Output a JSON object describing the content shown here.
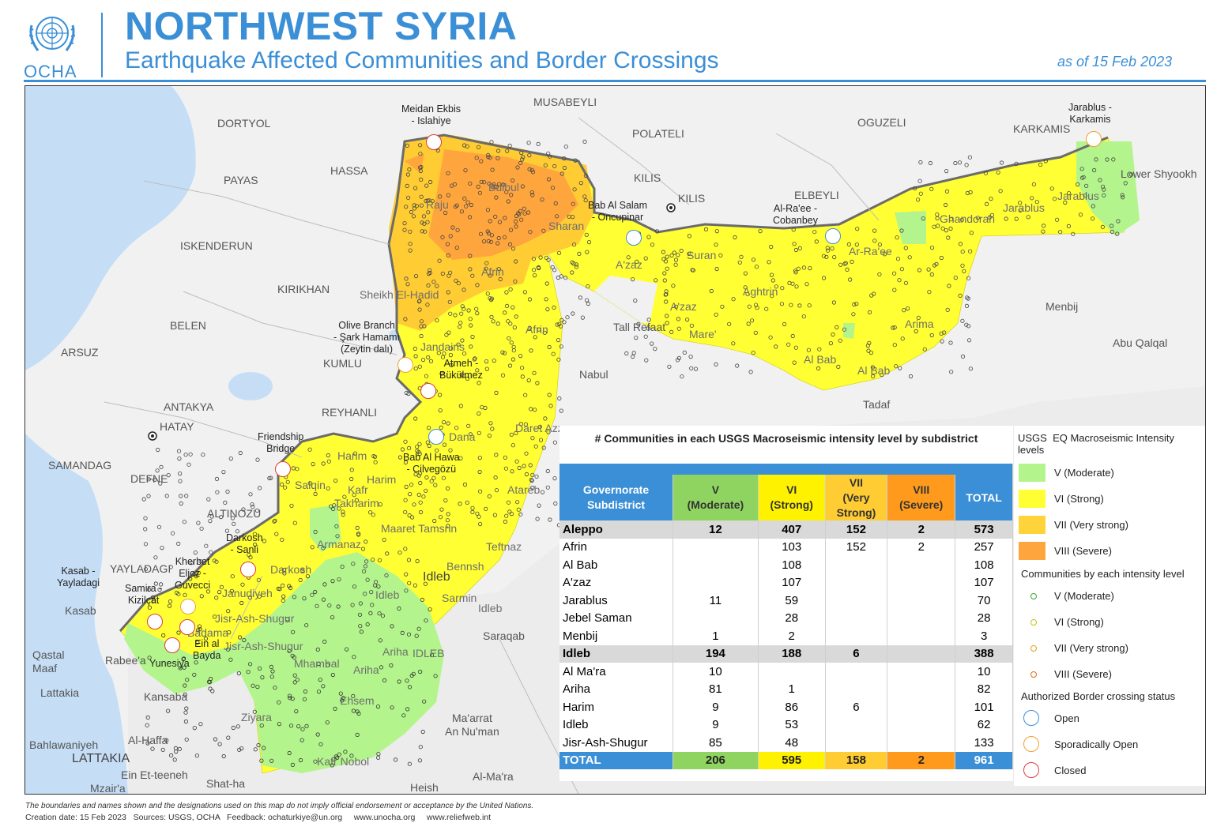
{
  "header": {
    "org": "OCHA",
    "title": "NORTHWEST SYRIA",
    "subtitle": "Earthquake Affected Communities and Border Crossings",
    "date": "as of 15 Feb 2023"
  },
  "map": {
    "places": [
      {
        "id": "musabeyli",
        "text": "MUSABEYLI"
      },
      {
        "id": "dortyol",
        "text": "DORTYOL"
      },
      {
        "id": "polateli",
        "text": "POLATELI"
      },
      {
        "id": "oguzeli",
        "text": "OGUZELI"
      },
      {
        "id": "karkamis",
        "text": "KARKAMIS"
      },
      {
        "id": "hassa",
        "text": "HASSA"
      },
      {
        "id": "payas",
        "text": "PAYAS"
      },
      {
        "id": "kilis1",
        "text": "KILIS"
      },
      {
        "id": "kilis2",
        "text": "KILIS"
      },
      {
        "id": "elbeyli",
        "text": "ELBEYLI"
      },
      {
        "id": "lowershyoukh",
        "text": "Lower Shyookh"
      },
      {
        "id": "iskenderun",
        "text": "ISKENDERUN"
      },
      {
        "id": "kirikhan",
        "text": "KIRIKHAN"
      },
      {
        "id": "belen",
        "text": "BELEN"
      },
      {
        "id": "arsuz",
        "text": "ARSUZ"
      },
      {
        "id": "kumlu",
        "text": "KUMLU"
      },
      {
        "id": "antakya",
        "text": "ANTAKYA"
      },
      {
        "id": "hatay",
        "text": "HATAY"
      },
      {
        "id": "reyhanli",
        "text": "REYHANLI"
      },
      {
        "id": "samandag",
        "text": "SAMANDAG"
      },
      {
        "id": "defne",
        "text": "DEFNE"
      },
      {
        "id": "altinozu",
        "text": "ALTINOZU"
      },
      {
        "id": "yayladagi",
        "text": "YAYLADAGI"
      },
      {
        "id": "kasab",
        "text": "Kasab"
      },
      {
        "id": "qastalmaaf",
        "text": "Qastal\nMaaf"
      },
      {
        "id": "rabee",
        "text": "Rabee'a"
      },
      {
        "id": "lattakia",
        "text": "Lattakia"
      },
      {
        "id": "kansaba",
        "text": "Kansaba"
      },
      {
        "id": "alhaffa",
        "text": "Al-Haffa"
      },
      {
        "id": "bahlawaniyeh",
        "text": "Bahlawaniyeh"
      },
      {
        "id": "lattakiabig",
        "text": "LATTAKIA"
      },
      {
        "id": "einetteeneh",
        "text": "Ein Et-teeneh"
      },
      {
        "id": "mzaira",
        "text": "Mzair'a"
      },
      {
        "id": "shatha",
        "text": "Shat-ha"
      },
      {
        "id": "heish",
        "text": "Heish"
      },
      {
        "id": "alma",
        "text": "Al-Ma'ra"
      },
      {
        "id": "maarrat",
        "text": "Ma'arrat\nAn Nu'man"
      },
      {
        "id": "saraqab",
        "text": "Saraqab"
      },
      {
        "id": "nabul",
        "text": "Nabul"
      },
      {
        "id": "tallrefaat",
        "text": "Tall Refaat"
      },
      {
        "id": "tadaf",
        "text": "Tadaf"
      },
      {
        "id": "menbij",
        "text": "Menbij"
      },
      {
        "id": "abuqalqal",
        "text": "Abu Qalqal"
      },
      {
        "id": "idleb",
        "text": "Idleb"
      }
    ],
    "admin_labels": [
      {
        "id": "raju",
        "text": "Raju"
      },
      {
        "id": "bulbul",
        "text": "Bulbul"
      },
      {
        "id": "sharan",
        "text": "Sharan"
      },
      {
        "id": "afrin1",
        "text": "Afrin"
      },
      {
        "id": "afrin2",
        "text": "Afrin"
      },
      {
        "id": "sheikh",
        "text": "Sheikh El-Hadid"
      },
      {
        "id": "jandairis",
        "text": "Jandairis"
      },
      {
        "id": "aazaz1",
        "text": "A'zaz"
      },
      {
        "id": "aazaz2",
        "text": "A'zaz"
      },
      {
        "id": "suran",
        "text": "Suran"
      },
      {
        "id": "aghtrin",
        "text": "Aghtrin"
      },
      {
        "id": "mare",
        "text": "Mare'"
      },
      {
        "id": "arraee",
        "text": "Ar-Ra'ee"
      },
      {
        "id": "arima",
        "text": "Arima"
      },
      {
        "id": "albab1",
        "text": "Al Bab"
      },
      {
        "id": "albab2",
        "text": "Al Bab"
      },
      {
        "id": "ghandorah",
        "text": "Ghandorah"
      },
      {
        "id": "jarablus1",
        "text": "Jarablus"
      },
      {
        "id": "jarablus2",
        "text": "Jarablus"
      },
      {
        "id": "dana",
        "text": "Dana"
      },
      {
        "id": "daretazza",
        "text": "Daret Azza"
      },
      {
        "id": "harim1",
        "text": "Harim"
      },
      {
        "id": "harim2",
        "text": "Harim"
      },
      {
        "id": "salqin",
        "text": "Salqin"
      },
      {
        "id": "kafr",
        "text": "Kafr"
      },
      {
        "id": "takharim",
        "text": "Takharim"
      },
      {
        "id": "atareb",
        "text": "Atareb"
      },
      {
        "id": "maarettamsrin",
        "text": "Maaret Tamsrin"
      },
      {
        "id": "teftnaz",
        "text": "Teftnaz"
      },
      {
        "id": "armanaz",
        "text": "Armanaz"
      },
      {
        "id": "darkosh",
        "text": "Darkosh"
      },
      {
        "id": "janudiyeh",
        "text": "Janudiyeh"
      },
      {
        "id": "bennsh",
        "text": "Bennsh"
      },
      {
        "id": "idleb2",
        "text": "Idleb"
      },
      {
        "id": "idleb3",
        "text": "Idleb"
      },
      {
        "id": "sarmin",
        "text": "Sarmin"
      },
      {
        "id": "jisr1",
        "text": "Jisr-Ash-Shugur"
      },
      {
        "id": "jisr2",
        "text": "Jisr-Ash-Shugur"
      },
      {
        "id": "badama",
        "text": "Badama"
      },
      {
        "id": "mhambal",
        "text": "Mhambal"
      },
      {
        "id": "ariha1",
        "text": "Ariha"
      },
      {
        "id": "ariha2",
        "text": "Ariha"
      },
      {
        "id": "idlebgov",
        "text": "IDLEB"
      },
      {
        "id": "ehsem",
        "text": "Ehsem"
      },
      {
        "id": "ziyara",
        "text": "Ziyara"
      },
      {
        "id": "kafrnobol",
        "text": "Kafr Nobol"
      }
    ],
    "crossings": [
      {
        "id": "meidan",
        "text": "Meidan Ekbis\n- Islahiye",
        "status": "Closed"
      },
      {
        "id": "babalsalam",
        "text": "Bab Al Salam\n- Oncupinar",
        "status": "Open"
      },
      {
        "id": "alraee",
        "text": "Al-Ra'ee -\nCobanbey",
        "status": "Open"
      },
      {
        "id": "jarablusx",
        "text": "Jarablus -\nKarkamis",
        "status": "Sporadically Open"
      },
      {
        "id": "olivebranch",
        "text": "Olive Branch\n- Şark Hamamı\n(Zeytin dalı)",
        "status": "Sporadically Open"
      },
      {
        "id": "atmeh",
        "text": "Atmeh -\nBükülmez",
        "status": "Closed"
      },
      {
        "id": "babalhawa",
        "text": "Bab Al Hawa\n- Cilvegözü",
        "status": "Open"
      },
      {
        "id": "friendship",
        "text": "Friendship\nBridge",
        "status": "Closed"
      },
      {
        "id": "darkoshx",
        "text": "Darkosh\n- Sanli",
        "status": "Closed"
      },
      {
        "id": "kherbet",
        "text": "Kherbet\nEljoz -\nGuvecci",
        "status": "Sporadically Open"
      },
      {
        "id": "kasabx",
        "text": "Kasab -\nYayladagi",
        "status": "Closed"
      },
      {
        "id": "samira",
        "text": "Samira -\nKizilçat",
        "status": "Closed"
      },
      {
        "id": "einalbayda",
        "text": "Ein al\nBayda",
        "status": "Closed"
      },
      {
        "id": "yunesiya",
        "text": "Yunesiya",
        "status": "Closed"
      }
    ]
  },
  "table": {
    "title": "# Communities in each USGS Macroseismic intensity level by subdistrict",
    "headers": {
      "gov": "Governorate\nSubdistrict",
      "v": "V\n(Moderate)",
      "vi": "VI\n(Strong)",
      "vii": "VII\n(Very\nStrong)",
      "viii": "VIII\n(Severe)",
      "total": "TOTAL"
    },
    "rows": [
      {
        "type": "gov",
        "name": "Aleppo",
        "v": "12",
        "vi": "407",
        "vii": "152",
        "viii": "2",
        "total": "573"
      },
      {
        "type": "sub",
        "name": "Afrin",
        "v": "",
        "vi": "103",
        "vii": "152",
        "viii": "2",
        "total": "257"
      },
      {
        "type": "sub",
        "name": "Al Bab",
        "v": "",
        "vi": "108",
        "vii": "",
        "viii": "",
        "total": "108"
      },
      {
        "type": "sub",
        "name": "A'zaz",
        "v": "",
        "vi": "107",
        "vii": "",
        "viii": "",
        "total": "107"
      },
      {
        "type": "sub",
        "name": "Jarablus",
        "v": "11",
        "vi": "59",
        "vii": "",
        "viii": "",
        "total": "70"
      },
      {
        "type": "sub",
        "name": "Jebel Saman",
        "v": "",
        "vi": "28",
        "vii": "",
        "viii": "",
        "total": "28"
      },
      {
        "type": "sub",
        "name": "Menbij",
        "v": "1",
        "vi": "2",
        "vii": "",
        "viii": "",
        "total": "3"
      },
      {
        "type": "gov",
        "name": "Idleb",
        "v": "194",
        "vi": "188",
        "vii": "6",
        "viii": "",
        "total": "388"
      },
      {
        "type": "sub",
        "name": "Al Ma'ra",
        "v": "10",
        "vi": "",
        "vii": "",
        "viii": "",
        "total": "10"
      },
      {
        "type": "sub",
        "name": "Ariha",
        "v": "81",
        "vi": "1",
        "vii": "",
        "viii": "",
        "total": "82"
      },
      {
        "type": "sub",
        "name": "Harim",
        "v": "9",
        "vi": "86",
        "vii": "6",
        "viii": "",
        "total": "101"
      },
      {
        "type": "sub",
        "name": "Idleb",
        "v": "9",
        "vi": "53",
        "vii": "",
        "viii": "",
        "total": "62"
      },
      {
        "type": "sub",
        "name": "Jisr-Ash-Shugur",
        "v": "85",
        "vi": "48",
        "vii": "",
        "viii": "",
        "total": "133"
      }
    ],
    "total": {
      "label": "TOTAL",
      "v": "206",
      "vi": "595",
      "vii": "158",
      "viii": "2",
      "total": "961"
    }
  },
  "legend": {
    "intensity_title": "USGS  EQ Macroseismic Intensity\nlevels",
    "intensity": [
      {
        "label": "V (Moderate)",
        "color": "#b3f58c"
      },
      {
        "label": "VI (Strong)",
        "color": "#ffff33"
      },
      {
        "label": "VII (Very strong)",
        "color": "#ffd43b"
      },
      {
        "label": "VIII (Severe)",
        "color": "#ffa53d"
      }
    ],
    "communities_title": "Communities by each intensity level",
    "communities": [
      {
        "label": "V (Moderate)",
        "color": "#3aa832"
      },
      {
        "label": "VI (Strong)",
        "color": "#c9c214"
      },
      {
        "label": "VII (Very strong)",
        "color": "#e0a11a"
      },
      {
        "label": "VIII (Severe)",
        "color": "#e36a16"
      }
    ],
    "crossing_title": "Authorized Border crossing status",
    "crossing": [
      {
        "label": "Open",
        "color": "#3b8fd6",
        "icon": "open-crossing-icon"
      },
      {
        "label": "Sporadically Open",
        "color": "#f2a130",
        "icon": "sporadic-crossing-icon"
      },
      {
        "label": "Closed",
        "color": "#e03b3b",
        "icon": "closed-crossing-icon"
      }
    ]
  },
  "footer": {
    "disclaimer": "The boundaries and names shown and the designations used on this map do not imply official endorsement or acceptance by the United Nations.",
    "credits": "Creation date: 15 Feb 2023   Sources: USGS, OCHA   Feedback: ochaturkiye@un.org     www.unocha.org     www.reliefweb.int"
  }
}
